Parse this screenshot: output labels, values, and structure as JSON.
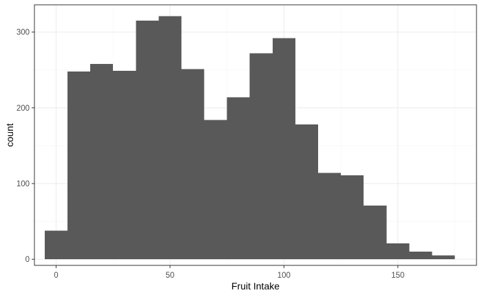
{
  "chart_data": {
    "type": "bar",
    "subtype": "histogram",
    "title": "",
    "xlabel": "Fruit Intake",
    "ylabel": "count",
    "bin_width": 10,
    "bin_centers": [
      0,
      10,
      20,
      30,
      40,
      50,
      60,
      70,
      80,
      90,
      100,
      110,
      120,
      130,
      140,
      150,
      160,
      170
    ],
    "values": [
      38,
      248,
      258,
      249,
      315,
      321,
      251,
      184,
      214,
      272,
      292,
      178,
      114,
      111,
      71,
      21,
      10,
      5
    ],
    "xlim": [
      -9.5,
      184.5
    ],
    "ylim": [
      -8,
      336
    ],
    "x_ticks": [
      0,
      50,
      100,
      150
    ],
    "x_tick_labels": [
      "0",
      "50",
      "100",
      "150"
    ],
    "y_ticks": [
      0,
      100,
      200,
      300
    ],
    "y_tick_labels": [
      "0",
      "100",
      "200",
      "300"
    ],
    "grid": true,
    "legend": "none",
    "colors": {
      "bar_fill": "#595959",
      "panel_border": "#333333",
      "grid_major": "#ebebeb",
      "grid_minor": "#f5f5f5",
      "background": "#ffffff"
    }
  }
}
